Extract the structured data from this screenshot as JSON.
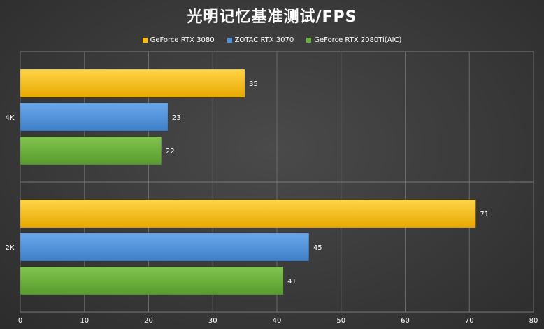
{
  "chart_data": {
    "type": "bar",
    "orientation": "horizontal",
    "title": "光明记忆基准测试/FPS",
    "categories": [
      "4K",
      "2K"
    ],
    "series": [
      {
        "name": "GeForce RTX 3080",
        "color": "#ffc000",
        "values": [
          35,
          71
        ]
      },
      {
        "name": "ZOTAC RTX 3070",
        "color": "#4e90d8",
        "values": [
          23,
          45
        ]
      },
      {
        "name": "GeForce RTX 2080Ti(AIC)",
        "color": "#6bb03c",
        "values": [
          22,
          41
        ]
      }
    ],
    "xlim": [
      0,
      80
    ],
    "xticks": [
      0,
      10,
      20,
      30,
      40,
      50,
      60,
      70,
      80
    ],
    "grid": true,
    "legend_position": "top"
  }
}
